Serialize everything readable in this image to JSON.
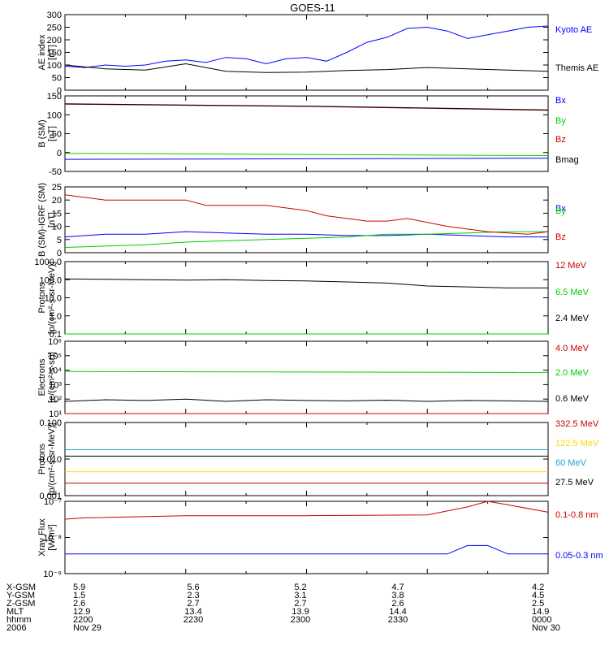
{
  "title": "GOES-11",
  "chart_data": [
    {
      "type": "line",
      "ylabel": "AE index",
      "yunit": "[nT]",
      "ylim": [
        0,
        300
      ],
      "yticks": [
        0,
        50,
        100,
        150,
        200,
        250,
        300
      ],
      "yticklabels": [
        "0",
        "50",
        "100",
        "150",
        "200",
        "250",
        "300"
      ],
      "scale": "linear",
      "series": [
        {
          "name": "Kyoto AE",
          "color": "#0000ff",
          "x": [
            2200,
            2205,
            2210,
            2215,
            2220,
            2225,
            2230,
            2235,
            2240,
            2245,
            2250,
            2255,
            2300,
            2305,
            2310,
            2315,
            2320,
            2325,
            2330,
            2335,
            2340,
            2345,
            2350,
            2355,
            2400
          ],
          "y": [
            95,
            90,
            100,
            95,
            100,
            115,
            120,
            110,
            130,
            125,
            105,
            125,
            130,
            115,
            150,
            190,
            210,
            245,
            250,
            235,
            205,
            220,
            235,
            250,
            255
          ]
        },
        {
          "name": "Themis AE",
          "color": "#000000",
          "x": [
            2200,
            2210,
            2220,
            2230,
            2240,
            2250,
            2300,
            2310,
            2320,
            2330,
            2340,
            2350,
            2400
          ],
          "y": [
            100,
            85,
            80,
            105,
            75,
            70,
            72,
            78,
            82,
            90,
            85,
            80,
            75
          ]
        }
      ]
    },
    {
      "type": "line",
      "ylabel": "B (SM)",
      "yunit": "[nT]",
      "ylim": [
        -50,
        150
      ],
      "yticks": [
        -50,
        0,
        50,
        100,
        150
      ],
      "yticklabels": [
        "-50",
        "0",
        "50",
        "100",
        "150"
      ],
      "scale": "linear",
      "series": [
        {
          "name": "Bx",
          "color": "#0000ff",
          "x": [
            2200,
            2400
          ],
          "y": [
            -18,
            -15
          ]
        },
        {
          "name": "By",
          "color": "#00cc00",
          "x": [
            2200,
            2400
          ],
          "y": [
            -2,
            -8
          ]
        },
        {
          "name": "Bz",
          "color": "#cc0000",
          "x": [
            2200,
            2300,
            2400
          ],
          "y": [
            128,
            122,
            112
          ]
        },
        {
          "name": "Bmag",
          "color": "#000000",
          "x": [
            2200,
            2300,
            2400
          ],
          "y": [
            129,
            123,
            113
          ]
        }
      ]
    },
    {
      "type": "line",
      "ylabel": "B (SM)-IGRF (SM)",
      "yunit": "[nT]",
      "ylim": [
        0,
        25
      ],
      "yticks": [
        0,
        5,
        10,
        15,
        20,
        25
      ],
      "yticklabels": [
        "0",
        "5",
        "10",
        "15",
        "20",
        "25"
      ],
      "scale": "linear",
      "series": [
        {
          "name": "Bx",
          "color": "#0000ff",
          "x": [
            2200,
            2210,
            2220,
            2230,
            2240,
            2250,
            2300,
            2310,
            2320,
            2330,
            2340,
            2350,
            2400
          ],
          "y": [
            6,
            7,
            7,
            8,
            7.5,
            7,
            7,
            6.5,
            6.5,
            7,
            6.5,
            6,
            6
          ]
        },
        {
          "name": "By",
          "color": "#00cc00",
          "x": [
            2200,
            2210,
            2220,
            2230,
            2240,
            2250,
            2300,
            2310,
            2320,
            2330,
            2340,
            2350,
            2400
          ],
          "y": [
            2,
            2.5,
            3,
            4,
            4.5,
            5,
            5.5,
            6,
            7,
            7,
            7.5,
            8,
            8
          ]
        },
        {
          "name": "Bz",
          "color": "#cc0000",
          "x": [
            2200,
            2205,
            2210,
            2230,
            2235,
            2250,
            2300,
            2305,
            2315,
            2320,
            2325,
            2335,
            2345,
            2355,
            2400
          ],
          "y": [
            22,
            21,
            20,
            20,
            18,
            18,
            16,
            14,
            12,
            12,
            13,
            10,
            8,
            7,
            8
          ]
        }
      ]
    },
    {
      "type": "line",
      "ylabel": "Protons",
      "yunit": "[p/(cm²-s-sr-MeV)]",
      "ylim": [
        0.1,
        1000
      ],
      "yticks": [
        0.1,
        1,
        10,
        100,
        1000
      ],
      "yticklabels": [
        "0.1",
        "1.0",
        "10.0",
        "100.0",
        "1000.0"
      ],
      "scale": "log",
      "series": [
        {
          "name": "12 MeV",
          "color": "#cc0000",
          "x": [
            2200,
            2400
          ],
          "y": [
            0.1,
            0.1
          ]
        },
        {
          "name": "6.5 MeV",
          "color": "#00cc00",
          "x": [
            2200,
            2400
          ],
          "y": [
            0.1,
            0.1
          ]
        },
        {
          "name": "2.4 MeV",
          "color": "#000000",
          "x": [
            2200,
            2210,
            2220,
            2230,
            2240,
            2250,
            2300,
            2310,
            2320,
            2330,
            2340,
            2350,
            2400
          ],
          "y": [
            110,
            105,
            100,
            95,
            100,
            90,
            85,
            75,
            65,
            45,
            40,
            35,
            35
          ]
        }
      ]
    },
    {
      "type": "line",
      "ylabel": "Electrons",
      "yunit": "[e/(cm²-s-sr)]",
      "ylim": [
        10,
        1000000
      ],
      "yticks": [
        10,
        100,
        1000,
        10000,
        100000,
        1000000
      ],
      "yticklabels": [
        "10¹",
        "10²",
        "10³",
        "10⁴",
        "10⁵",
        "10⁶"
      ],
      "scale": "log",
      "series": [
        {
          "name": "4.0 MeV",
          "color": "#cc0000",
          "x": [
            2200,
            2400
          ],
          "y": [
            10,
            10
          ]
        },
        {
          "name": "2.0 MeV",
          "color": "#00cc00",
          "x": [
            2200,
            2400
          ],
          "y": [
            8000,
            7000
          ]
        },
        {
          "name": "0.6 MeV",
          "color": "#000000",
          "x": [
            2200,
            2210,
            2220,
            2230,
            2240,
            2250,
            2300,
            2310,
            2320,
            2330,
            2340,
            2350,
            2400
          ],
          "y": [
            70,
            90,
            80,
            100,
            70,
            90,
            80,
            75,
            85,
            70,
            80,
            75,
            70
          ]
        }
      ]
    },
    {
      "type": "line",
      "ylabel": "Protons",
      "yunit": "[p/(cm²-s-sr-MeV)]",
      "ylim": [
        0.001,
        0.1
      ],
      "yticks": [
        0.001,
        0.01,
        0.1
      ],
      "yticklabels": [
        "0.001",
        "0.010",
        "0.100"
      ],
      "scale": "log",
      "series": [
        {
          "name": "332.5 MeV",
          "color": "#cc0000",
          "x": [
            2200,
            2400
          ],
          "y": [
            0.0022,
            0.0022
          ]
        },
        {
          "name": "122.5 MeV",
          "color": "#ffd700",
          "x": [
            2200,
            2400
          ],
          "y": [
            0.0045,
            0.0045
          ]
        },
        {
          "name": "60 MeV",
          "color": "#1aa3d6",
          "x": [
            2200,
            2400
          ],
          "y": [
            0.018,
            0.018
          ]
        },
        {
          "name": "27.5 MeV",
          "color": "#000000",
          "x": [
            2200,
            2400
          ],
          "y": [
            0.012,
            0.012
          ]
        }
      ]
    },
    {
      "type": "line",
      "ylabel": "Xray Flux",
      "yunit": "[W/m²]",
      "ylim": [
        1e-09,
        1e-07
      ],
      "yticks": [
        1e-09,
        1e-08,
        1e-07
      ],
      "yticklabels": [
        "10⁻⁹",
        "10⁻⁸",
        "10⁻⁷"
      ],
      "scale": "log",
      "series": [
        {
          "name": "0.1-0.8 nm",
          "color": "#cc0000",
          "x": [
            2200,
            2205,
            2230,
            2300,
            2330,
            2340,
            2345,
            2350,
            2400
          ],
          "y": [
            3.2e-08,
            3.5e-08,
            4e-08,
            4e-08,
            4.2e-08,
            7e-08,
            1e-07,
            8e-08,
            5e-08
          ]
        },
        {
          "name": "0.05-0.3 nm",
          "color": "#0000ff",
          "x": [
            2200,
            2330,
            2335,
            2340,
            2345,
            2350,
            2400
          ],
          "y": [
            3.5e-09,
            3.5e-09,
            3.5e-09,
            6e-09,
            6e-09,
            3.5e-09,
            3.5e-09
          ]
        }
      ]
    }
  ],
  "orbit": {
    "labels": [
      "X-GSM",
      "Y-GSM",
      "Z-GSM",
      "MLT",
      "hhmm",
      "2006"
    ],
    "columns": [
      [
        "5.9",
        "1.5",
        "2.6",
        "12.9",
        "2200",
        "Nov 29"
      ],
      [
        "5.6",
        "2.3",
        "2.7",
        "13.4",
        "2230",
        ""
      ],
      [
        "5.2",
        "3.1",
        "2.7",
        "13.9",
        "2300",
        ""
      ],
      [
        "4.7",
        "3.8",
        "2.6",
        "14.4",
        "2330",
        ""
      ],
      [
        "4.2",
        "4.5",
        "2.5",
        "14.9",
        "0000",
        "Nov 30"
      ]
    ]
  }
}
